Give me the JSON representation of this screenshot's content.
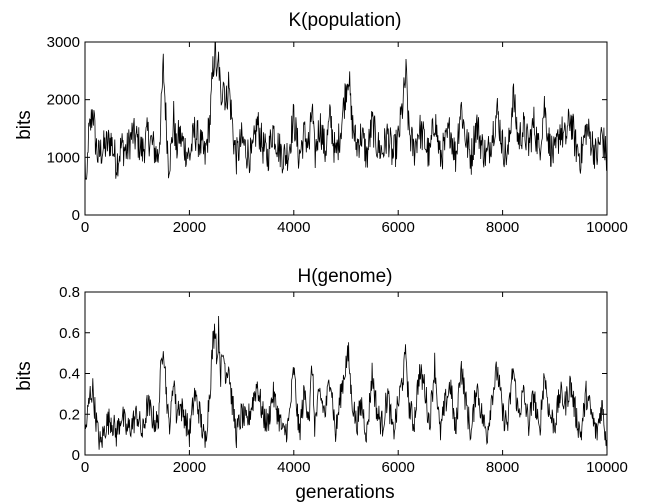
{
  "chart_data": [
    {
      "type": "line",
      "title": "K(population)",
      "xlabel": "",
      "ylabel": "bits",
      "xlim": [
        0,
        10000
      ],
      "ylim": [
        0,
        3000
      ],
      "xticks": [
        "0",
        "2000",
        "4000",
        "6000",
        "8000",
        "10000"
      ],
      "yticks": [
        "0",
        "1000",
        "2000",
        "3000"
      ],
      "grid": false,
      "legend": "none",
      "color": "#000000",
      "series": [
        {
          "anchors_x": [
            0,
            30,
            60,
            100,
            150,
            200,
            250,
            300,
            400,
            500,
            600,
            700,
            800,
            900,
            1000,
            1100,
            1200,
            1300,
            1400,
            1450,
            1500,
            1550,
            1600,
            1650,
            1700,
            1750,
            1800,
            1900,
            2000,
            2100,
            2200,
            2300,
            2400,
            2450,
            2500,
            2530,
            2560,
            2600,
            2650,
            2700,
            2750,
            2800,
            2850,
            2900,
            3000,
            3100,
            3200,
            3300,
            3400,
            3500,
            3600,
            3700,
            3800,
            3900,
            4000,
            4100,
            4200,
            4300,
            4350,
            4400,
            4500,
            4600,
            4700,
            4800,
            4900,
            5000,
            5050,
            5100,
            5200,
            5300,
            5400,
            5500,
            5600,
            5700,
            5800,
            5900,
            6000,
            6100,
            6150,
            6200,
            6300,
            6400,
            6500,
            6600,
            6700,
            6800,
            6900,
            7000,
            7100,
            7200,
            7300,
            7400,
            7500,
            7600,
            7700,
            7800,
            7900,
            8000,
            8100,
            8200,
            8300,
            8400,
            8500,
            8600,
            8700,
            8800,
            8900,
            9000,
            9100,
            9200,
            9300,
            9400,
            9500,
            9600,
            9700,
            9800,
            9900,
            9950,
            10000
          ],
          "anchors_y": [
            1000,
            300,
            1300,
            1500,
            1850,
            1300,
            1000,
            1100,
            1200,
            1300,
            900,
            1200,
            1100,
            1400,
            1300,
            1100,
            1400,
            1200,
            1000,
            1600,
            2600,
            1700,
            900,
            1100,
            1700,
            1100,
            1400,
            1200,
            1000,
            1450,
            1250,
            1000,
            1700,
            2500,
            2950,
            2300,
            2700,
            2000,
            2400,
            1900,
            2300,
            1800,
            1300,
            1000,
            1300,
            1100,
            1000,
            1600,
            1200,
            1000,
            1500,
            1200,
            1000,
            1100,
            1700,
            1000,
            1400,
            1200,
            1900,
            1000,
            1600,
            1100,
            1700,
            1000,
            1500,
            2200,
            2500,
            1700,
            1200,
            1400,
            1000,
            1600,
            1200,
            1100,
            1400,
            1000,
            1300,
            2000,
            2450,
            1500,
            1100,
            1500,
            1300,
            1000,
            1700,
            1000,
            1200,
            1500,
            1000,
            1900,
            1300,
            1000,
            1600,
            1200,
            1000,
            1400,
            1800,
            1200,
            1000,
            2100,
            1300,
            1500,
            1200,
            1600,
            1100,
            1900,
            1200,
            1000,
            1500,
            1300,
            1700,
            1200,
            1000,
            1500,
            1300,
            1000,
            1400,
            1200,
            900,
            2100,
            1200
          ],
          "noise": 650,
          "floor": 600,
          "points": 1000
        }
      ]
    },
    {
      "type": "line",
      "title": "H(genome)",
      "xlabel": "generations",
      "ylabel": "bits",
      "xlim": [
        0,
        10000
      ],
      "ylim": [
        0,
        0.8
      ],
      "xticks": [
        "0",
        "2000",
        "4000",
        "6000",
        "8000",
        "10000"
      ],
      "yticks": [
        "0",
        "0.2",
        "0.4",
        "0.6",
        "0.8"
      ],
      "grid": false,
      "legend": "none",
      "color": "#000000",
      "series": [
        {
          "anchors_x": [
            0,
            50,
            100,
            150,
            200,
            250,
            300,
            400,
            500,
            600,
            700,
            800,
            900,
            1000,
            1100,
            1200,
            1300,
            1400,
            1450,
            1500,
            1550,
            1600,
            1650,
            1700,
            1750,
            1800,
            1900,
            2000,
            2100,
            2200,
            2300,
            2400,
            2450,
            2500,
            2530,
            2560,
            2600,
            2650,
            2700,
            2750,
            2800,
            2850,
            2900,
            3000,
            3100,
            3200,
            3300,
            3400,
            3500,
            3600,
            3700,
            3800,
            3900,
            4000,
            4100,
            4200,
            4300,
            4350,
            4400,
            4500,
            4600,
            4700,
            4800,
            4900,
            5000,
            5050,
            5100,
            5200,
            5300,
            5400,
            5500,
            5600,
            5700,
            5800,
            5900,
            6000,
            6100,
            6150,
            6200,
            6300,
            6400,
            6500,
            6600,
            6700,
            6800,
            6900,
            7000,
            7100,
            7200,
            7300,
            7400,
            7500,
            7600,
            7700,
            7800,
            7900,
            8000,
            8100,
            8200,
            8300,
            8400,
            8500,
            8600,
            8700,
            8800,
            8900,
            9000,
            9100,
            9200,
            9300,
            9400,
            9500,
            9600,
            9700,
            9800,
            9900,
            9950,
            10000
          ],
          "anchors_y": [
            0.1,
            0.2,
            0.3,
            0.32,
            0.2,
            0.1,
            0.05,
            0.15,
            0.18,
            0.1,
            0.2,
            0.12,
            0.15,
            0.2,
            0.1,
            0.25,
            0.18,
            0.15,
            0.4,
            0.57,
            0.35,
            0.15,
            0.2,
            0.4,
            0.2,
            0.25,
            0.2,
            0.1,
            0.3,
            0.2,
            0.05,
            0.35,
            0.55,
            0.64,
            0.45,
            0.62,
            0.4,
            0.5,
            0.4,
            0.45,
            0.3,
            0.2,
            0.1,
            0.2,
            0.15,
            0.25,
            0.35,
            0.2,
            0.15,
            0.3,
            0.2,
            0.1,
            0.15,
            0.42,
            0.1,
            0.3,
            0.2,
            0.45,
            0.15,
            0.3,
            0.2,
            0.4,
            0.1,
            0.3,
            0.45,
            0.49,
            0.3,
            0.15,
            0.25,
            0.1,
            0.4,
            0.2,
            0.15,
            0.3,
            0.1,
            0.25,
            0.4,
            0.5,
            0.25,
            0.15,
            0.4,
            0.35,
            0.15,
            0.45,
            0.1,
            0.25,
            0.35,
            0.1,
            0.45,
            0.25,
            0.1,
            0.35,
            0.2,
            0.1,
            0.3,
            0.42,
            0.2,
            0.15,
            0.43,
            0.2,
            0.3,
            0.15,
            0.3,
            0.1,
            0.4,
            0.2,
            0.15,
            0.3,
            0.25,
            0.35,
            0.2,
            0.1,
            0.3,
            0.2,
            0.1,
            0.25,
            0.15,
            0.05,
            0.41,
            0.15
          ],
          "noise": 0.14,
          "floor": 0.0,
          "points": 1000
        }
      ]
    }
  ]
}
